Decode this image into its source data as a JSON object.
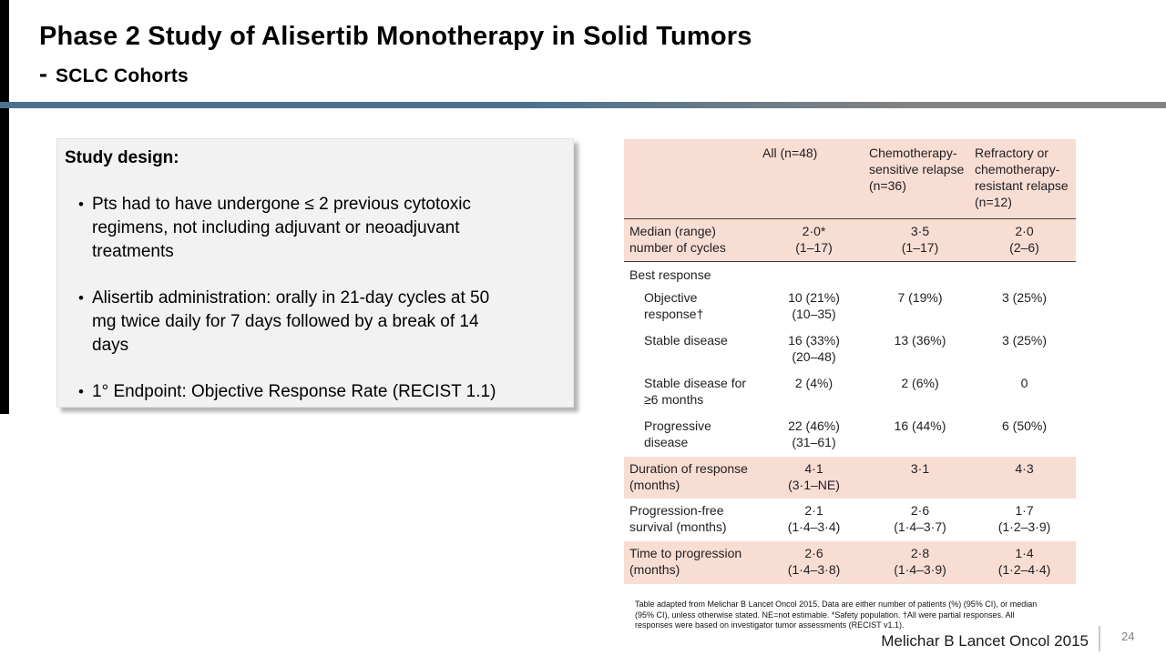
{
  "header": {
    "title": "Phase 2 Study of Alisertib Monotherapy in Solid Tumors",
    "subtitle_dash": "-",
    "subtitle": "SCLC Cohorts"
  },
  "study_design": {
    "heading": "Study design:",
    "bullets": [
      "Pts had to have undergone ≤ 2 previous cytotoxic\nregimens, not including adjuvant or neoadjuvant\ntreatments",
      "Alisertib administration: orally in 21-day cycles at 50\nmg twice daily for 7 days followed by a break of 14\ndays",
      "1° Endpoint: Objective Response Rate (RECIST 1.1)"
    ]
  },
  "table": {
    "columns": [
      "",
      "All (n=48)",
      "Chemotherapy-sensitive relapse (n=36)",
      "Refractory or chemotherapy-resistant relapse (n=12)"
    ],
    "rows": [
      {
        "label": "Median (range) number of cycles",
        "bg": "pink",
        "indent": false,
        "rule_below": true,
        "section": false,
        "values": [
          [
            "2·0*",
            "(1–17)"
          ],
          [
            "3·5",
            "(1–17)"
          ],
          [
            "2·0",
            "(2–6)"
          ]
        ]
      },
      {
        "label": "Best response",
        "bg": "white",
        "indent": false,
        "rule_below": false,
        "section": true,
        "values": [
          [],
          [],
          []
        ]
      },
      {
        "label": "Objective response†",
        "bg": "white",
        "indent": true,
        "rule_below": false,
        "section": false,
        "values": [
          [
            "10 (21%)",
            "(10–35)"
          ],
          [
            "7 (19%)"
          ],
          [
            "3 (25%)"
          ]
        ]
      },
      {
        "label": "Stable disease",
        "bg": "white",
        "indent": true,
        "rule_below": false,
        "section": false,
        "values": [
          [
            "16 (33%)",
            "(20–48)"
          ],
          [
            "13 (36%)"
          ],
          [
            "3 (25%)"
          ]
        ]
      },
      {
        "label": "Stable disease for ≥6 months",
        "bg": "white",
        "indent": true,
        "rule_below": false,
        "section": false,
        "values": [
          [
            "2 (4%)"
          ],
          [
            "2 (6%)"
          ],
          [
            "0"
          ]
        ]
      },
      {
        "label": "Progressive disease",
        "bg": "white",
        "indent": true,
        "rule_below": false,
        "section": false,
        "values": [
          [
            "22 (46%)",
            "(31–61)"
          ],
          [
            "16 (44%)"
          ],
          [
            "6 (50%)"
          ]
        ]
      },
      {
        "label": "Duration of response (months)",
        "bg": "pink",
        "indent": false,
        "rule_below": false,
        "section": false,
        "values": [
          [
            "4·1",
            "(3·1–NE)"
          ],
          [
            "3·1"
          ],
          [
            "4·3"
          ]
        ]
      },
      {
        "label": "Progression-free survival (months)",
        "bg": "white",
        "indent": false,
        "rule_below": false,
        "section": false,
        "values": [
          [
            "2·1",
            "(1·4–3·4)"
          ],
          [
            "2·6",
            "(1·4–3·7)"
          ],
          [
            "1·7",
            "(1·2–3·9)"
          ]
        ]
      },
      {
        "label": "Time to progression (months)",
        "bg": "pink",
        "indent": false,
        "rule_below": false,
        "section": false,
        "values": [
          [
            "2·6",
            "(1·4–3·8)"
          ],
          [
            "2·8",
            "(1·4–3·9)"
          ],
          [
            "1·4",
            "(1·2–4·4)"
          ]
        ]
      }
    ],
    "footnote": "Table adapted from Melichar B Lancet Oncol 2015. Data are either number of patients (%) (95% CI), or median\n(95% CI), unless otherwise stated. NE=not estimable. *Safety population. †All were partial responses. All\nresponses were based on investigator tumor assessments (RECIST v1.1)."
  },
  "footer": {
    "citation": "Melichar B Lancet Oncol 2015",
    "page_number": "24"
  },
  "colors": {
    "table_pink": "#f8ddd3",
    "divider_blue": "#4c7290",
    "divider_gray": "#828282",
    "box_gray": "#f2f2f2",
    "accent_black": "#000000"
  }
}
